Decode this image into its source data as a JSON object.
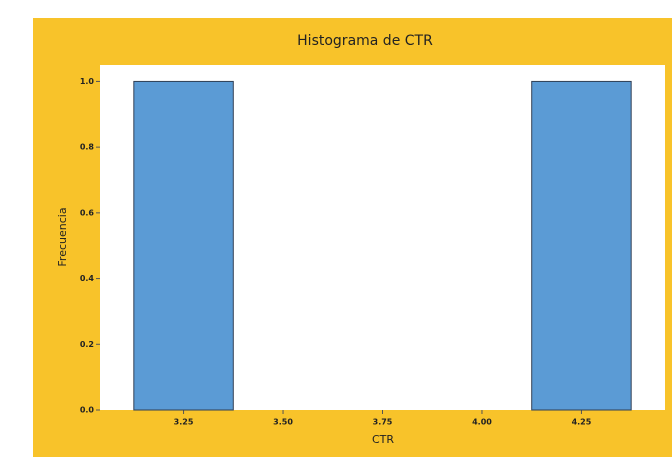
{
  "chart_data": {
    "type": "histogram",
    "title": "Histograma de CTR",
    "x_label": "CTR",
    "y_label": "Frecuencia",
    "bins": [
      3.125,
      3.375,
      3.625,
      3.875,
      4.125,
      4.375
    ],
    "values": [
      1,
      0,
      0,
      0,
      1
    ],
    "color": "#5b9bd5",
    "xlim": [
      3.04,
      4.46
    ],
    "xticks": [
      3.25,
      {
        "value": 3.5,
        "label": "3.50"
      },
      3.75,
      {
        "value": 4,
        "label": "4.00"
      },
      4.25
    ],
    "ylim": [
      0,
      1.05
    ],
    "yticks": [
      {
        "value": 0,
        "label": "0.0"
      },
      0.2,
      0.4,
      0.6,
      0.8,
      {
        "value": 1,
        "label": "1.0"
      }
    ],
    "grid": false
  }
}
